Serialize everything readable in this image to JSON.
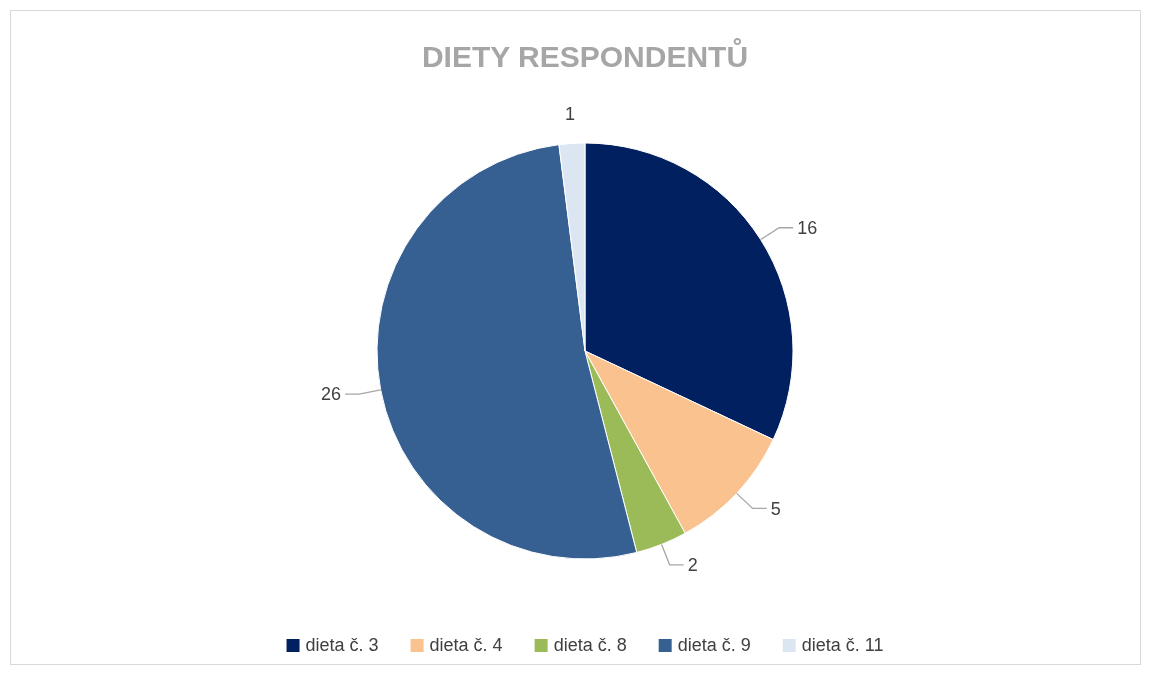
{
  "chart_data": {
    "type": "pie",
    "title": "DIETY RESPONDENTŮ",
    "categories": [
      "dieta č. 3",
      "dieta č. 4",
      "dieta č. 8",
      "dieta č. 9",
      "dieta č. 11"
    ],
    "values": [
      16,
      5,
      2,
      26,
      1
    ],
    "colors": [
      "#002060",
      "#f9c28f",
      "#9bbb59",
      "#376092",
      "#dce6f2"
    ],
    "data_labels": true,
    "legend": "bottom"
  }
}
